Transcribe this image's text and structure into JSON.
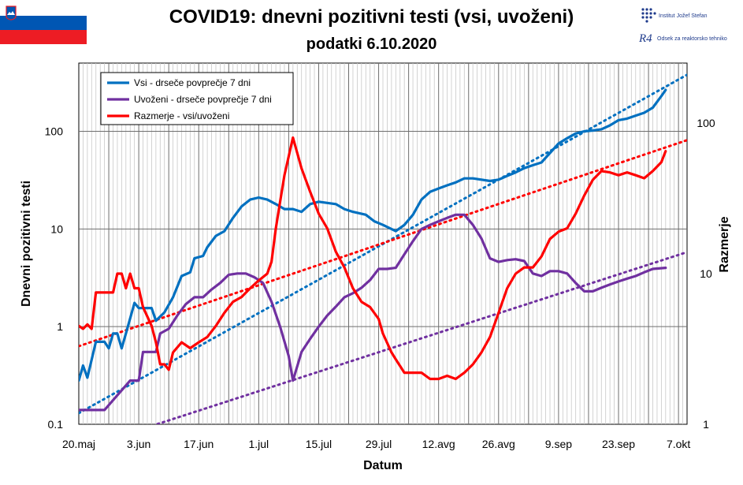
{
  "header": {
    "title": "COVID19: dnevni pozitivni testi (vsi, uvoženi)",
    "subtitle": "podatki 6.10.2020"
  },
  "logo": {
    "institute": "Institut Jožef Stefan",
    "department": "Odsek za reaktorsko tehniko",
    "mark": "R4"
  },
  "colors": {
    "blue": "#0070c0",
    "purple": "#7030a0",
    "red": "#ff0000",
    "flag_white": "#ffffff",
    "flag_blue": "#0056b3",
    "flag_red": "#ed1c24"
  },
  "chart_data": {
    "type": "line",
    "xlabel": "Datum",
    "ylabel": "Dnevni pozitivni testi",
    "y2label": "Razmerje",
    "x_ticks": [
      "20.maj",
      "3.jun",
      "17.jun",
      "1.jul",
      "15.jul",
      "29.jul",
      "12.avg",
      "26.avg",
      "9.sep",
      "23.sep",
      "7.okt"
    ],
    "x_range_days": [
      0,
      142
    ],
    "y_left_scale": "log",
    "y_left_range": [
      0.1,
      500
    ],
    "y_left_ticks": [
      "0.1",
      "1",
      "10",
      "100"
    ],
    "y_right_scale": "log",
    "y_right_range": [
      1,
      250
    ],
    "y_right_ticks": [
      "1",
      "10",
      "100"
    ],
    "grid": true,
    "legend_position": "top-left",
    "series": [
      {
        "name": "Vsi - drseče povprečje 7 dni",
        "color": "blue",
        "axis": "left",
        "points": [
          [
            0,
            0.28
          ],
          [
            1,
            0.4
          ],
          [
            2,
            0.3
          ],
          [
            4,
            0.7
          ],
          [
            6,
            0.7
          ],
          [
            7,
            0.6
          ],
          [
            8,
            0.85
          ],
          [
            9,
            0.85
          ],
          [
            10,
            0.6
          ],
          [
            11,
            0.85
          ],
          [
            13,
            1.75
          ],
          [
            14,
            1.55
          ],
          [
            17,
            1.55
          ],
          [
            18,
            1.15
          ],
          [
            20,
            1.4
          ],
          [
            22,
            2.0
          ],
          [
            24,
            3.3
          ],
          [
            26,
            3.6
          ],
          [
            27,
            5.0
          ],
          [
            29,
            5.3
          ],
          [
            30,
            6.5
          ],
          [
            32,
            8.5
          ],
          [
            34,
            9.5
          ],
          [
            36,
            13
          ],
          [
            38,
            17
          ],
          [
            40,
            20
          ],
          [
            42,
            21
          ],
          [
            44,
            20
          ],
          [
            46,
            18
          ],
          [
            48,
            16
          ],
          [
            50,
            16
          ],
          [
            52,
            15
          ],
          [
            54,
            18
          ],
          [
            56,
            19
          ],
          [
            58,
            18.5
          ],
          [
            60,
            18
          ],
          [
            62,
            16
          ],
          [
            64,
            15
          ],
          [
            67,
            14
          ],
          [
            69,
            12
          ],
          [
            71,
            11
          ],
          [
            73,
            10
          ],
          [
            74,
            9.5
          ],
          [
            76,
            11
          ],
          [
            78,
            14
          ],
          [
            80,
            20
          ],
          [
            82,
            24
          ],
          [
            84,
            26
          ],
          [
            86,
            28
          ],
          [
            88,
            30
          ],
          [
            90,
            33
          ],
          [
            92,
            33
          ],
          [
            94,
            32
          ],
          [
            96,
            31
          ],
          [
            98,
            32
          ],
          [
            100,
            35
          ],
          [
            102,
            38
          ],
          [
            104,
            42
          ],
          [
            106,
            45
          ],
          [
            108,
            48
          ],
          [
            110,
            60
          ],
          [
            112,
            75
          ],
          [
            114,
            85
          ],
          [
            116,
            95
          ],
          [
            118,
            100
          ],
          [
            120,
            102
          ],
          [
            122,
            105
          ],
          [
            124,
            115
          ],
          [
            126,
            130
          ],
          [
            128,
            135
          ],
          [
            130,
            145
          ],
          [
            132,
            155
          ],
          [
            134,
            175
          ],
          [
            136,
            230
          ],
          [
            137,
            265
          ]
        ]
      },
      {
        "name": "Uvoženi - drseče povprečje 7 dni",
        "color": "purple",
        "axis": "left",
        "points": [
          [
            0,
            0.14
          ],
          [
            6,
            0.14
          ],
          [
            12,
            0.28
          ],
          [
            14,
            0.28
          ],
          [
            15,
            0.55
          ],
          [
            18,
            0.55
          ],
          [
            19,
            0.85
          ],
          [
            21,
            0.95
          ],
          [
            23,
            1.3
          ],
          [
            25,
            1.7
          ],
          [
            27,
            2.0
          ],
          [
            29,
            2.0
          ],
          [
            31,
            2.4
          ],
          [
            33,
            2.8
          ],
          [
            35,
            3.4
          ],
          [
            37,
            3.5
          ],
          [
            39,
            3.5
          ],
          [
            41,
            3.2
          ],
          [
            43,
            2.8
          ],
          [
            45,
            1.8
          ],
          [
            47,
            1.0
          ],
          [
            49,
            0.5
          ],
          [
            50,
            0.28
          ],
          [
            52,
            0.55
          ],
          [
            54,
            0.75
          ],
          [
            56,
            1.0
          ],
          [
            58,
            1.3
          ],
          [
            60,
            1.6
          ],
          [
            62,
            2.0
          ],
          [
            64,
            2.2
          ],
          [
            66,
            2.5
          ],
          [
            68,
            3.0
          ],
          [
            70,
            3.9
          ],
          [
            72,
            3.9
          ],
          [
            74,
            4.0
          ],
          [
            76,
            5.5
          ],
          [
            78,
            7.5
          ],
          [
            80,
            10
          ],
          [
            82,
            11
          ],
          [
            84,
            12
          ],
          [
            86,
            13
          ],
          [
            88,
            14
          ],
          [
            90,
            14
          ],
          [
            92,
            11
          ],
          [
            94,
            8
          ],
          [
            96,
            5
          ],
          [
            98,
            4.6
          ],
          [
            100,
            4.8
          ],
          [
            102,
            4.9
          ],
          [
            104,
            4.7
          ],
          [
            106,
            3.5
          ],
          [
            108,
            3.3
          ],
          [
            110,
            3.7
          ],
          [
            112,
            3.7
          ],
          [
            114,
            3.5
          ],
          [
            116,
            2.8
          ],
          [
            118,
            2.3
          ],
          [
            120,
            2.3
          ],
          [
            122,
            2.5
          ],
          [
            124,
            2.7
          ],
          [
            126,
            2.9
          ],
          [
            128,
            3.1
          ],
          [
            130,
            3.3
          ],
          [
            132,
            3.6
          ],
          [
            134,
            3.9
          ],
          [
            137,
            4.0
          ]
        ]
      },
      {
        "name": "Razmerje - vsi/uvoženi",
        "color": "red",
        "axis": "right",
        "points": [
          [
            0,
            4.5
          ],
          [
            1,
            4.3
          ],
          [
            2,
            4.6
          ],
          [
            3,
            4.3
          ],
          [
            4,
            7.5
          ],
          [
            6,
            7.5
          ],
          [
            8,
            7.5
          ],
          [
            9,
            10
          ],
          [
            10,
            10
          ],
          [
            11,
            8
          ],
          [
            12,
            10
          ],
          [
            13,
            8
          ],
          [
            14,
            8
          ],
          [
            15,
            6
          ],
          [
            17,
            4.5
          ],
          [
            18,
            3.5
          ],
          [
            19,
            2.5
          ],
          [
            20,
            2.5
          ],
          [
            21,
            2.3
          ],
          [
            22,
            3
          ],
          [
            24,
            3.5
          ],
          [
            26,
            3.2
          ],
          [
            28,
            3.5
          ],
          [
            30,
            3.8
          ],
          [
            32,
            4.5
          ],
          [
            34,
            5.5
          ],
          [
            36,
            6.5
          ],
          [
            38,
            7
          ],
          [
            40,
            8
          ],
          [
            42,
            9
          ],
          [
            44,
            10
          ],
          [
            45,
            12
          ],
          [
            46,
            20
          ],
          [
            47,
            30
          ],
          [
            48,
            45
          ],
          [
            49,
            60
          ],
          [
            50,
            80
          ],
          [
            52,
            50
          ],
          [
            54,
            35
          ],
          [
            56,
            25
          ],
          [
            58,
            20
          ],
          [
            60,
            14
          ],
          [
            62,
            11
          ],
          [
            64,
            8
          ],
          [
            66,
            6.5
          ],
          [
            68,
            6
          ],
          [
            70,
            5
          ],
          [
            71,
            4
          ],
          [
            73,
            3
          ],
          [
            74,
            2.7
          ],
          [
            76,
            2.2
          ],
          [
            78,
            2.2
          ],
          [
            80,
            2.2
          ],
          [
            82,
            2.0
          ],
          [
            84,
            2.0
          ],
          [
            86,
            2.1
          ],
          [
            88,
            2.0
          ],
          [
            90,
            2.2
          ],
          [
            92,
            2.5
          ],
          [
            94,
            3.0
          ],
          [
            96,
            3.8
          ],
          [
            98,
            5.5
          ],
          [
            100,
            8.0
          ],
          [
            102,
            10
          ],
          [
            104,
            11
          ],
          [
            106,
            11
          ],
          [
            108,
            13
          ],
          [
            110,
            17
          ],
          [
            112,
            19
          ],
          [
            114,
            20
          ],
          [
            116,
            25
          ],
          [
            118,
            33
          ],
          [
            120,
            42
          ],
          [
            122,
            48
          ],
          [
            124,
            47
          ],
          [
            126,
            45
          ],
          [
            128,
            47
          ],
          [
            130,
            45
          ],
          [
            132,
            43
          ],
          [
            134,
            48
          ],
          [
            136,
            55
          ],
          [
            137,
            65
          ]
        ]
      },
      {
        "name": "",
        "color": "blue",
        "axis": "left",
        "style": "trend",
        "points": [
          [
            0,
            0.13
          ],
          [
            142,
            380
          ]
        ]
      },
      {
        "name": "",
        "color": "red",
        "axis": "right",
        "style": "trend",
        "points": [
          [
            0,
            3.3
          ],
          [
            142,
            77
          ]
        ]
      },
      {
        "name": "",
        "color": "purple",
        "axis": "left",
        "style": "trend",
        "points": [
          [
            0,
            0.055
          ],
          [
            142,
            5.8
          ]
        ]
      }
    ]
  }
}
